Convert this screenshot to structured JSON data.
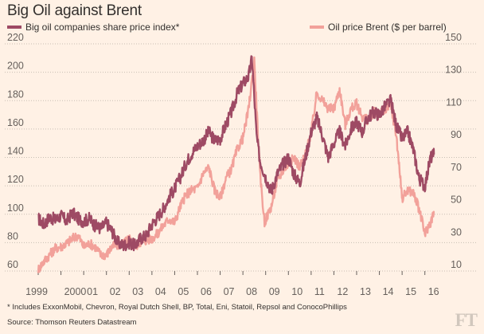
{
  "title": "Big Oil against Brent",
  "footnote": "* Includes ExxonMobil, Chevron, Royal Dutch Shell, BP, Total, Eni, Statoil, Repsol and ConocoPhillips",
  "source": "Source: Thomson Reuters Datastream",
  "logo": "FT",
  "colors": {
    "index": "#9e4a64",
    "brent": "#f2a19a",
    "background": "#fff1e5",
    "grid": "#c8bdb3"
  },
  "chart_data": {
    "type": "line",
    "title": "Big Oil against Brent",
    "x_ticks": [
      "1999",
      "2000",
      "01",
      "02",
      "03",
      "04",
      "05",
      "06",
      "07",
      "08",
      "09",
      "10",
      "11",
      "12",
      "13",
      "14",
      "15",
      "16"
    ],
    "xlim": [
      1999,
      2016.5
    ],
    "grid": true,
    "left_axis": {
      "ylim": [
        60,
        220
      ],
      "ticks": [
        "60",
        "80",
        "100",
        "120",
        "140",
        "160",
        "180",
        "200",
        "220"
      ]
    },
    "right_axis": {
      "ylim": [
        10,
        150
      ],
      "ticks": [
        "10",
        "30",
        "50",
        "70",
        "90",
        "110",
        "130",
        "150"
      ]
    },
    "series": [
      {
        "name": "Big oil companies share price index*",
        "axis": "left",
        "color": "#9e4a64",
        "x": [
          1999.0,
          1999.25,
          1999.5,
          1999.75,
          2000.0,
          2000.25,
          2000.5,
          2000.75,
          2001.0,
          2001.25,
          2001.5,
          2001.75,
          2002.0,
          2002.25,
          2002.5,
          2002.75,
          2003.0,
          2003.25,
          2003.5,
          2003.75,
          2004.0,
          2004.25,
          2004.5,
          2004.75,
          2005.0,
          2005.25,
          2005.5,
          2005.75,
          2006.0,
          2006.25,
          2006.5,
          2006.75,
          2007.0,
          2007.25,
          2007.5,
          2007.75,
          2008.0,
          2008.25,
          2008.4,
          2008.6,
          2008.75,
          2009.0,
          2009.25,
          2009.5,
          2009.75,
          2010.0,
          2010.25,
          2010.5,
          2010.75,
          2011.0,
          2011.25,
          2011.5,
          2011.75,
          2012.0,
          2012.25,
          2012.5,
          2012.75,
          2013.0,
          2013.25,
          2013.5,
          2013.75,
          2014.0,
          2014.25,
          2014.5,
          2014.75,
          2015.0,
          2015.25,
          2015.5,
          2015.75,
          2016.0,
          2016.25,
          2016.4
        ],
        "values": [
          97,
          93,
          98,
          96,
          99,
          95,
          101,
          97,
          95,
          97,
          92,
          90,
          94,
          88,
          80,
          78,
          80,
          78,
          83,
          85,
          93,
          98,
          104,
          112,
          118,
          126,
          136,
          143,
          148,
          152,
          158,
          152,
          153,
          163,
          172,
          185,
          192,
          197,
          210,
          155,
          138,
          126,
          116,
          128,
          135,
          140,
          128,
          122,
          140,
          158,
          168,
          155,
          140,
          150,
          158,
          148,
          160,
          165,
          158,
          168,
          172,
          170,
          176,
          180,
          162,
          153,
          158,
          145,
          125,
          120,
          140,
          142
        ]
      },
      {
        "name": "Oil price Brent ($ per barrel)",
        "axis": "right",
        "color": "#f2a19a",
        "x": [
          1999.0,
          1999.25,
          1999.5,
          1999.75,
          2000.0,
          2000.25,
          2000.5,
          2000.75,
          2001.0,
          2001.25,
          2001.5,
          2001.75,
          2002.0,
          2002.25,
          2002.5,
          2002.75,
          2003.0,
          2003.25,
          2003.5,
          2003.75,
          2004.0,
          2004.25,
          2004.5,
          2004.75,
          2005.0,
          2005.25,
          2005.5,
          2005.75,
          2006.0,
          2006.25,
          2006.5,
          2006.75,
          2007.0,
          2007.25,
          2007.5,
          2007.75,
          2008.0,
          2008.25,
          2008.5,
          2008.75,
          2008.95,
          2009.25,
          2009.5,
          2009.75,
          2010.0,
          2010.25,
          2010.5,
          2010.75,
          2011.0,
          2011.25,
          2011.5,
          2011.75,
          2012.0,
          2012.25,
          2012.5,
          2012.75,
          2013.0,
          2013.25,
          2013.5,
          2013.75,
          2014.0,
          2014.25,
          2014.5,
          2014.75,
          2015.0,
          2015.25,
          2015.5,
          2015.75,
          2016.0,
          2016.25,
          2016.4
        ],
        "values": [
          11,
          16,
          20,
          24,
          25,
          27,
          30,
          32,
          25,
          27,
          25,
          20,
          20,
          25,
          26,
          27,
          30,
          25,
          28,
          29,
          30,
          33,
          38,
          42,
          40,
          50,
          57,
          60,
          61,
          70,
          74,
          60,
          55,
          67,
          73,
          85,
          92,
          110,
          140,
          70,
          40,
          50,
          65,
          72,
          76,
          80,
          74,
          82,
          95,
          120,
          115,
          110,
          110,
          122,
          100,
          110,
          113,
          105,
          103,
          108,
          107,
          109,
          112,
          93,
          55,
          60,
          58,
          48,
          33,
          40,
          46
        ]
      }
    ]
  }
}
